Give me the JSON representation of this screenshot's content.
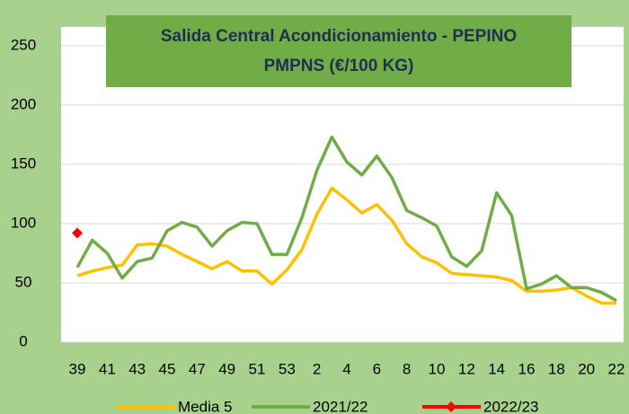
{
  "chart_data": {
    "type": "line",
    "title_lines": [
      "Salida Central Acondicionamiento - PEPINO",
      "PMPNS (€/100 KG)"
    ],
    "categories": [
      "39",
      null,
      "41",
      null,
      "43",
      null,
      "45",
      null,
      "47",
      null,
      "49",
      null,
      "51",
      null,
      "53",
      null,
      "2",
      null,
      "4",
      null,
      "6",
      null,
      "8",
      null,
      "10",
      null,
      "12",
      null,
      "14",
      null,
      "16",
      null,
      "18",
      null,
      "20",
      null,
      "22"
    ],
    "series": [
      {
        "name": "Media 5",
        "color": "#ffc000",
        "values": [
          56,
          60,
          63,
          65,
          82,
          83,
          81,
          74,
          68,
          62,
          68,
          60,
          60,
          49,
          61,
          78,
          108,
          130,
          120,
          109,
          116,
          103,
          83,
          72,
          67,
          58,
          57,
          56,
          55,
          52,
          43,
          43,
          44,
          46,
          39,
          33,
          33
        ]
      },
      {
        "name": "2021/22",
        "color": "#70ad47",
        "values": [
          63,
          86,
          75,
          54,
          68,
          71,
          94,
          101,
          97,
          81,
          94,
          101,
          100,
          74,
          74,
          105,
          145,
          173,
          152,
          141,
          157,
          139,
          111,
          105,
          98,
          72,
          64,
          77,
          126,
          107,
          45,
          49,
          56,
          46,
          46,
          42,
          35
        ]
      },
      {
        "name": "2022/23",
        "color": "#ff0000",
        "marker": "diamond",
        "values": [
          92,
          null,
          null,
          null,
          null,
          null,
          null,
          null,
          null,
          null,
          null,
          null,
          null,
          null,
          null,
          null,
          null,
          null,
          null,
          null,
          null,
          null,
          null,
          null,
          null,
          null,
          null,
          null,
          null,
          null,
          null,
          null,
          null,
          null,
          null,
          null,
          null
        ]
      }
    ],
    "ylim": [
      0,
      250
    ],
    "yticks": [
      0,
      50,
      100,
      150,
      200,
      250
    ],
    "grid": true
  }
}
